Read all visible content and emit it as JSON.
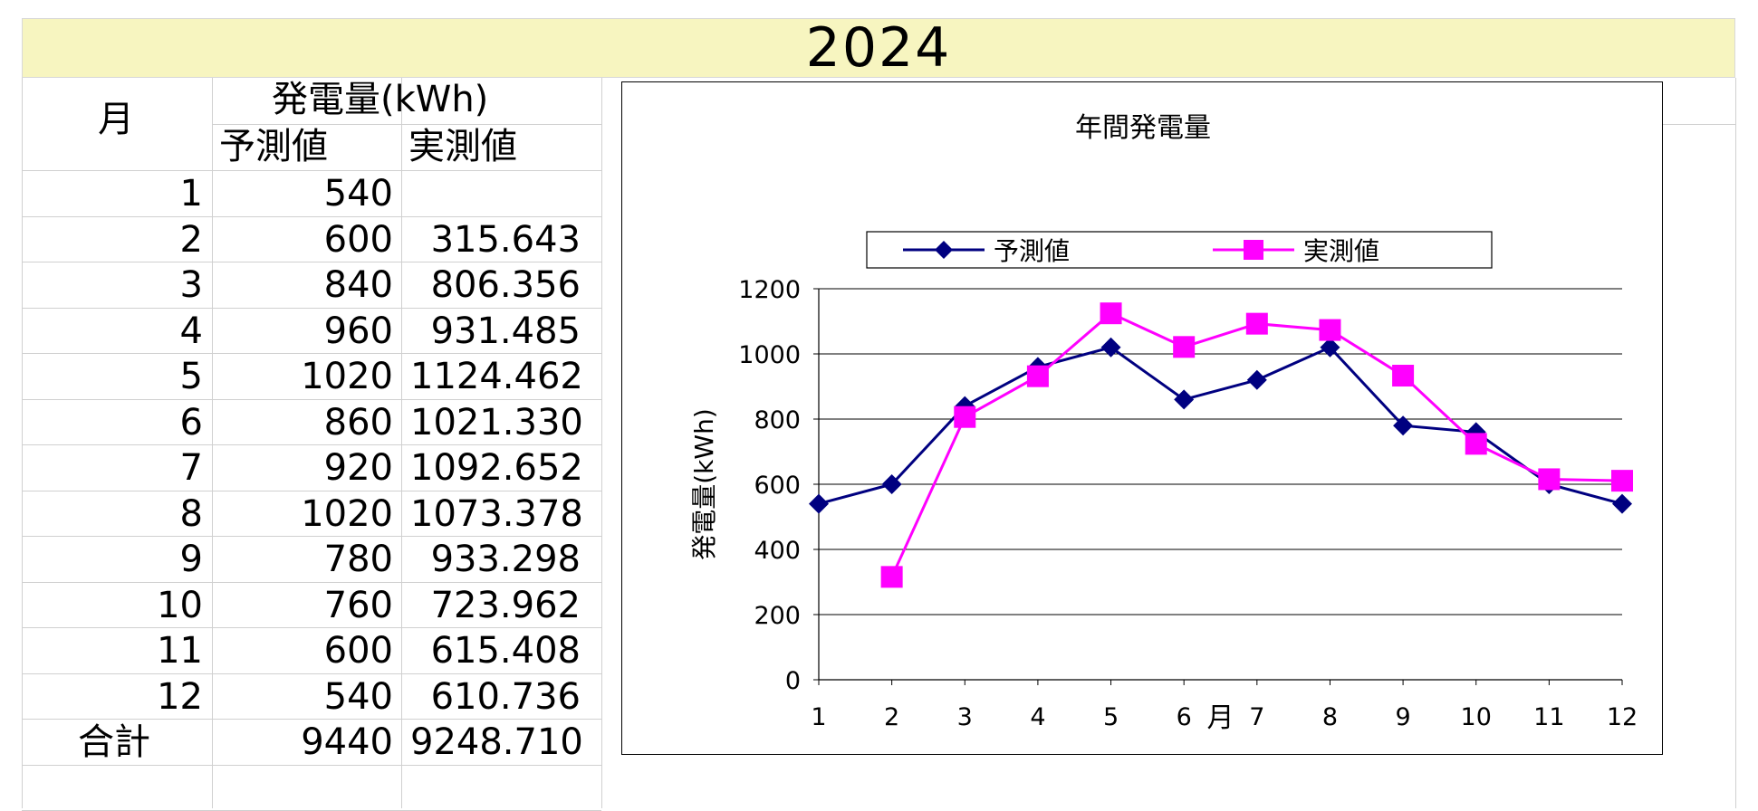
{
  "year_title": "2024",
  "table": {
    "month_header": "月",
    "generation_header": "発電量(kWh)",
    "forecast_header": "予測値",
    "actual_header": "実測値",
    "rows": [
      {
        "month": "1",
        "forecast": "540",
        "actual": ""
      },
      {
        "month": "2",
        "forecast": "600",
        "actual": "315.643"
      },
      {
        "month": "3",
        "forecast": "840",
        "actual": "806.356"
      },
      {
        "month": "4",
        "forecast": "960",
        "actual": "931.485"
      },
      {
        "month": "5",
        "forecast": "1020",
        "actual": "1124.462"
      },
      {
        "month": "6",
        "forecast": "860",
        "actual": "1021.330"
      },
      {
        "month": "7",
        "forecast": "920",
        "actual": "1092.652"
      },
      {
        "month": "8",
        "forecast": "1020",
        "actual": "1073.378"
      },
      {
        "month": "9",
        "forecast": "780",
        "actual": "933.298"
      },
      {
        "month": "10",
        "forecast": "760",
        "actual": "723.962"
      },
      {
        "month": "11",
        "forecast": "600",
        "actual": "615.408"
      },
      {
        "month": "12",
        "forecast": "540",
        "actual": "610.736"
      }
    ],
    "total_label": "合計",
    "total_forecast": "9440",
    "total_actual": "9248.710"
  },
  "chart_data": {
    "type": "line",
    "title": "年間発電量",
    "xlabel": "月",
    "ylabel": "発電量(kWh)",
    "categories": [
      "1",
      "2",
      "3",
      "4",
      "5",
      "6",
      "7",
      "8",
      "9",
      "10",
      "11",
      "12"
    ],
    "ylim": [
      0,
      1200
    ],
    "yticks": [
      0,
      200,
      400,
      600,
      800,
      1000,
      1200
    ],
    "grid": true,
    "legend_position": "top",
    "series": [
      {
        "name": "予測値",
        "color": "#000080",
        "marker": "diamond",
        "values": [
          540,
          600,
          840,
          960,
          1020,
          860,
          920,
          1020,
          780,
          760,
          600,
          540
        ]
      },
      {
        "name": "実測値",
        "color": "#ff00ff",
        "marker": "square",
        "values": [
          null,
          315.643,
          806.356,
          931.485,
          1124.462,
          1021.33,
          1092.652,
          1073.378,
          933.298,
          723.962,
          615.408,
          610.736
        ]
      }
    ]
  }
}
